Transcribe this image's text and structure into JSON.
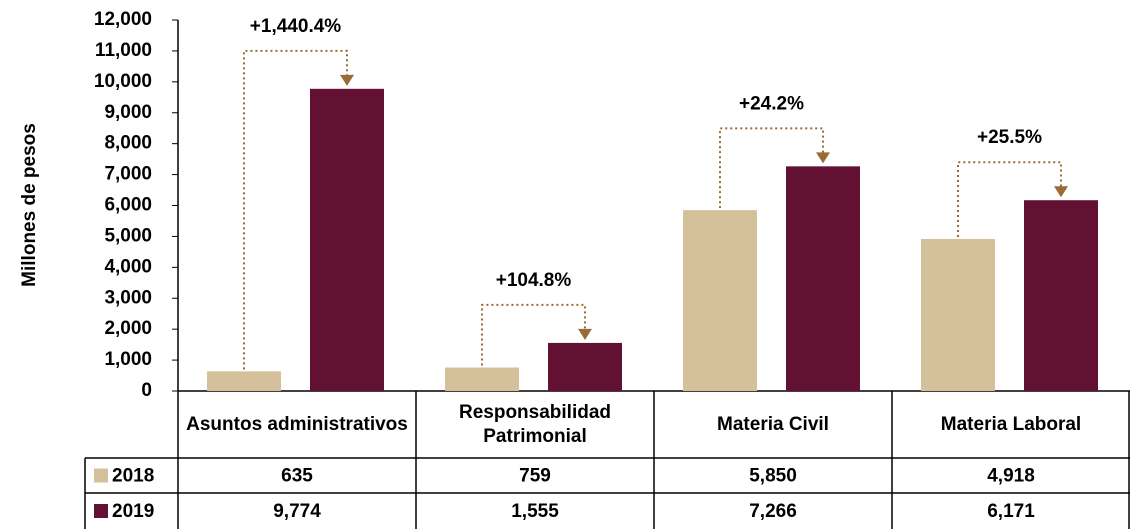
{
  "chart_data": {
    "type": "bar",
    "y_label": "Millones de pesos",
    "categories": [
      "Asuntos administrativos",
      "Responsabilidad Patrimonial",
      "Materia Civil",
      "Materia Laboral"
    ],
    "series": [
      {
        "name": "2018",
        "color": "#d4c19c",
        "values": [
          635,
          759,
          5850,
          4918
        ],
        "value_labels": [
          "635",
          "759",
          "5,850",
          "4,918"
        ]
      },
      {
        "name": "2019",
        "color": "#621132",
        "values": [
          9774,
          1555,
          7266,
          6171
        ],
        "value_labels": [
          "9,774",
          "1,555",
          "7,266",
          "6,171"
        ]
      }
    ],
    "annotations": [
      "+1,440.4%",
      "+104.8%",
      "+24.2%",
      "+25.5%"
    ],
    "annotation_color": "#9c6b35",
    "ylim": [
      0,
      12000
    ],
    "yticks": [
      0,
      {
        "value": 1000,
        "label": "1,000"
      },
      {
        "value": 2000,
        "label": "2,000"
      },
      {
        "value": 3000,
        "label": "3,000"
      },
      {
        "value": 4000,
        "label": "4,000"
      },
      {
        "value": 5000,
        "label": "5,000"
      },
      {
        "value": 6000,
        "label": "6,000"
      },
      {
        "value": 7000,
        "label": "7,000"
      },
      {
        "value": 8000,
        "label": "8,000"
      },
      {
        "value": 9000,
        "label": "9,000"
      },
      {
        "value": 10000,
        "label": "10,000"
      },
      {
        "value": 11000,
        "label": "11,000"
      },
      {
        "value": 12000,
        "label": "12,000"
      }
    ]
  }
}
